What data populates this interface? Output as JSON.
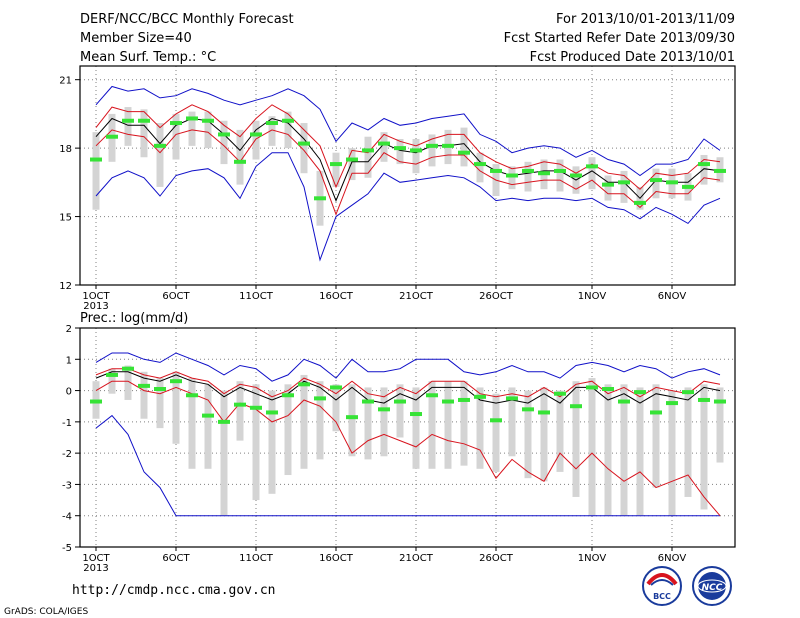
{
  "header": {
    "title": "DERF/NCC/BCC Monthly Forecast",
    "member_size": "Member Size=40",
    "variable": "Mean Surf. Temp.: °C",
    "period": "For 2013/10/01-2013/11/09",
    "fcst_started": "Fcst Started Refer Date 2013/09/30",
    "fcst_produced": "Fcst Produced Date 2013/10/01"
  },
  "footer": {
    "url": "http://cmdp.ncc.cma.gov.cn",
    "credit": "GrADS: COLA/IGES",
    "logo_bcc": "BCC",
    "logo_ncc": "NCC"
  },
  "colors": {
    "envelope": "#1010c8",
    "mean": "#000000",
    "spread": "#d8141e",
    "median": "#36e336",
    "box": "#d4d4d4",
    "grid": "#808080"
  },
  "chart_data": [
    {
      "type": "box",
      "ylabel": "Mean Surf. Temp.: °C",
      "ylim": [
        12,
        21.6
      ],
      "yticks": [
        12,
        15,
        18,
        21
      ],
      "xticks": [
        {
          "day": 0,
          "label": "1OCT"
        },
        {
          "day": 5,
          "label": "6OCT"
        },
        {
          "day": 10,
          "label": "11OCT"
        },
        {
          "day": 15,
          "label": "16OCT"
        },
        {
          "day": 20,
          "label": "21OCT"
        },
        {
          "day": 25,
          "label": "26OCT"
        },
        {
          "day": 31,
          "label": "1NOV"
        },
        {
          "day": 36,
          "label": "6NOV"
        }
      ],
      "xsublabel": "2013",
      "grid": true,
      "series": {
        "max": [
          19.9,
          20.7,
          20.5,
          20.6,
          20.2,
          20.3,
          20.6,
          20.4,
          20.1,
          19.9,
          20.1,
          20.3,
          20.6,
          20.3,
          19.7,
          18.3,
          19.1,
          18.8,
          19.3,
          19.0,
          19.1,
          19.3,
          19.4,
          19.5,
          18.6,
          18.3,
          17.8,
          18.0,
          18.1,
          18.0,
          17.6,
          17.9,
          17.5,
          17.3,
          16.8,
          17.3,
          17.3,
          17.5,
          18.4,
          17.9
        ],
        "upper": [
          18.9,
          19.8,
          19.6,
          19.6,
          18.9,
          19.5,
          19.9,
          19.6,
          19.0,
          18.5,
          19.3,
          19.9,
          19.5,
          18.8,
          18.1,
          16.3,
          17.9,
          17.8,
          18.6,
          18.3,
          18.1,
          18.4,
          18.6,
          18.6,
          17.8,
          17.4,
          17.1,
          17.2,
          17.4,
          17.3,
          16.9,
          17.3,
          16.9,
          16.8,
          16.2,
          16.9,
          16.8,
          16.9,
          17.5,
          17.4
        ],
        "mean": [
          18.5,
          19.3,
          19.0,
          19.0,
          18.2,
          19.0,
          19.3,
          19.2,
          18.6,
          17.9,
          18.8,
          19.3,
          19.1,
          18.4,
          17.5,
          15.7,
          17.4,
          17.4,
          18.2,
          17.9,
          17.8,
          18.1,
          18.1,
          18.2,
          17.4,
          17.0,
          16.8,
          16.9,
          17.0,
          17.0,
          16.6,
          17.0,
          16.5,
          16.5,
          15.8,
          16.6,
          16.5,
          16.5,
          17.1,
          17.0
        ],
        "lower": [
          18.1,
          18.8,
          18.6,
          18.5,
          17.8,
          18.6,
          18.8,
          18.7,
          18.1,
          17.4,
          18.4,
          18.8,
          18.6,
          17.9,
          17.0,
          15.1,
          16.9,
          16.9,
          17.8,
          17.4,
          17.3,
          17.6,
          17.7,
          17.7,
          17.0,
          16.6,
          16.4,
          16.5,
          16.6,
          16.6,
          16.2,
          16.6,
          16.0,
          16.0,
          15.4,
          16.1,
          16.0,
          16.0,
          16.7,
          16.6
        ],
        "min": [
          15.9,
          16.7,
          17.0,
          16.7,
          15.9,
          16.8,
          17.0,
          17.1,
          16.7,
          15.8,
          17.2,
          17.8,
          17.8,
          16.3,
          13.1,
          15.0,
          15.5,
          16.0,
          16.9,
          16.5,
          16.6,
          16.7,
          16.8,
          16.7,
          16.3,
          15.7,
          15.8,
          15.7,
          15.8,
          15.8,
          15.7,
          15.8,
          15.4,
          15.3,
          14.9,
          15.4,
          15.1,
          14.7,
          15.5,
          15.8
        ],
        "median": [
          17.5,
          18.5,
          19.2,
          19.2,
          18.1,
          19.1,
          19.3,
          19.2,
          18.6,
          17.4,
          18.6,
          19.1,
          19.2,
          18.2,
          15.8,
          17.3,
          17.5,
          17.9,
          18.2,
          18.0,
          17.9,
          18.1,
          18.1,
          17.8,
          17.3,
          17.0,
          16.8,
          17.0,
          16.9,
          17.0,
          16.8,
          17.2,
          16.4,
          16.5,
          15.6,
          16.6,
          16.5,
          16.3,
          17.3,
          17.0
        ],
        "box_top": [
          18.7,
          19.5,
          19.8,
          19.7,
          19.1,
          19.5,
          19.6,
          19.6,
          19.2,
          18.8,
          19.2,
          19.4,
          19.6,
          19.1,
          17.0,
          17.8,
          18.0,
          18.5,
          18.7,
          18.4,
          18.4,
          18.6,
          18.8,
          18.9,
          17.8,
          17.3,
          17.2,
          17.4,
          17.5,
          17.5,
          17.2,
          17.6,
          16.8,
          17.0,
          16.3,
          17.1,
          17.1,
          16.9,
          17.7,
          17.6
        ],
        "box_bot": [
          15.3,
          17.4,
          18.1,
          17.6,
          16.3,
          17.5,
          18.1,
          18.0,
          17.3,
          16.4,
          17.5,
          18.1,
          18.0,
          16.9,
          14.6,
          16.3,
          16.6,
          16.7,
          17.4,
          17.3,
          16.9,
          17.2,
          17.3,
          17.2,
          16.5,
          15.9,
          16.2,
          16.1,
          16.2,
          16.1,
          16.0,
          16.2,
          15.7,
          15.6,
          15.3,
          15.8,
          15.8,
          15.7,
          16.4,
          16.5
        ]
      }
    },
    {
      "type": "box",
      "ylabel": "Prec.: log(mm/d)",
      "ylim": [
        -5,
        2
      ],
      "yticks": [
        -5,
        -4,
        -3,
        -2,
        -1,
        0,
        1,
        2
      ],
      "xticks": [
        {
          "day": 0,
          "label": "1OCT"
        },
        {
          "day": 5,
          "label": "6OCT"
        },
        {
          "day": 10,
          "label": "11OCT"
        },
        {
          "day": 15,
          "label": "16OCT"
        },
        {
          "day": 20,
          "label": "21OCT"
        },
        {
          "day": 25,
          "label": "26OCT"
        },
        {
          "day": 31,
          "label": "1NOV"
        },
        {
          "day": 36,
          "label": "6NOV"
        }
      ],
      "xsublabel": "2013",
      "grid": true,
      "series": {
        "max": [
          0.9,
          1.2,
          1.2,
          1.0,
          0.9,
          1.2,
          1.0,
          0.8,
          0.5,
          0.8,
          0.7,
          0.3,
          0.5,
          1.0,
          0.8,
          0.4,
          1.0,
          0.6,
          0.6,
          0.7,
          1.0,
          1.0,
          1.0,
          0.6,
          0.5,
          0.6,
          0.8,
          0.6,
          0.6,
          0.4,
          0.8,
          0.9,
          0.8,
          0.6,
          0.8,
          0.7,
          0.4,
          0.6,
          0.7,
          0.5
        ],
        "upper": [
          0.5,
          0.7,
          0.7,
          0.5,
          0.4,
          0.6,
          0.4,
          0.3,
          -0.1,
          0.2,
          0.1,
          -0.2,
          0.0,
          0.4,
          0.2,
          -0.1,
          0.3,
          -0.1,
          -0.2,
          0.1,
          -0.1,
          0.3,
          0.3,
          0.3,
          -0.1,
          -0.2,
          -0.1,
          -0.2,
          0.1,
          -0.2,
          0.2,
          0.3,
          -0.1,
          0.1,
          -0.2,
          0.1,
          0.0,
          -0.1,
          0.3,
          0.2
        ],
        "mean": [
          0.4,
          0.6,
          0.6,
          0.4,
          0.3,
          0.5,
          0.3,
          0.2,
          -0.2,
          0.1,
          -0.1,
          -0.3,
          -0.1,
          0.3,
          0.1,
          -0.3,
          0.1,
          -0.3,
          -0.4,
          -0.1,
          -0.3,
          0.1,
          0.1,
          0.1,
          -0.3,
          -0.4,
          -0.3,
          -0.4,
          -0.1,
          -0.4,
          0.1,
          0.1,
          -0.3,
          -0.1,
          -0.4,
          -0.1,
          -0.2,
          -0.3,
          0.1,
          0.0
        ],
        "lower": [
          0.0,
          0.3,
          0.3,
          0.0,
          -0.1,
          0.1,
          -0.1,
          -0.3,
          -1.0,
          -0.4,
          -0.6,
          -1.0,
          -0.8,
          -0.3,
          -0.5,
          -1.0,
          -2.0,
          -1.6,
          -1.4,
          -1.6,
          -1.8,
          -1.4,
          -1.6,
          -1.7,
          -1.9,
          -2.8,
          -2.2,
          -2.6,
          -2.9,
          -2.0,
          -2.5,
          -2.0,
          -2.5,
          -2.9,
          -2.6,
          -3.1,
          -2.9,
          -2.7,
          -3.4,
          -4.0
        ],
        "min": [
          -1.2,
          -0.8,
          -1.4,
          -2.6,
          -3.1,
          -4.0,
          -4.0,
          -4.0,
          -4.0,
          -4.0,
          -4.0,
          -4.0,
          -4.0,
          -4.0,
          -4.0,
          -4.0,
          -4.0,
          -4.0,
          -4.0,
          -4.0,
          -4.0,
          -4.0,
          -4.0,
          -4.0,
          -4.0,
          -4.0,
          -4.0,
          -4.0,
          -4.0,
          -4.0,
          -4.0,
          -4.0,
          -4.0,
          -4.0,
          -4.0,
          -4.0,
          -4.0,
          -4.0,
          -4.0,
          -4.0
        ],
        "median": [
          -0.35,
          0.5,
          0.7,
          0.15,
          0.05,
          0.3,
          -0.15,
          -0.8,
          -1.0,
          -0.45,
          -0.55,
          -0.7,
          -0.15,
          0.2,
          -0.25,
          0.1,
          -0.85,
          -0.35,
          -0.6,
          -0.35,
          -0.75,
          -0.15,
          -0.35,
          -0.3,
          -0.2,
          -0.95,
          -0.25,
          -0.6,
          -0.7,
          -0.1,
          -0.5,
          0.1,
          0.05,
          -0.35,
          -0.05,
          -0.7,
          -0.4,
          -0.05,
          -0.3,
          -0.35
        ],
        "box_top": [
          0.3,
          0.7,
          0.8,
          0.6,
          0.4,
          0.6,
          0.4,
          0.2,
          0.0,
          0.3,
          0.2,
          0.0,
          0.2,
          0.5,
          0.3,
          0.2,
          0.2,
          0.1,
          0.1,
          0.2,
          0.1,
          0.3,
          0.3,
          0.3,
          0.1,
          -0.1,
          0.1,
          0.0,
          0.1,
          0.0,
          0.3,
          0.4,
          0.2,
          0.2,
          0.1,
          0.2,
          0.0,
          0.1,
          0.2,
          0.1
        ],
        "box_bot": [
          -0.9,
          -0.1,
          -0.3,
          -0.9,
          -1.2,
          -1.7,
          -2.5,
          -2.5,
          -4.0,
          -1.6,
          -3.5,
          -3.3,
          -2.7,
          -2.5,
          -2.2,
          -1.3,
          -2.1,
          -2.2,
          -2.1,
          -1.5,
          -2.5,
          -2.5,
          -2.5,
          -2.4,
          -2.5,
          -2.6,
          -2.1,
          -2.8,
          -2.9,
          -2.6,
          -3.4,
          -4.0,
          -4.0,
          -4.0,
          -4.0,
          -3.1,
          -4.0,
          -3.4,
          -3.8,
          -2.3
        ]
      }
    }
  ]
}
